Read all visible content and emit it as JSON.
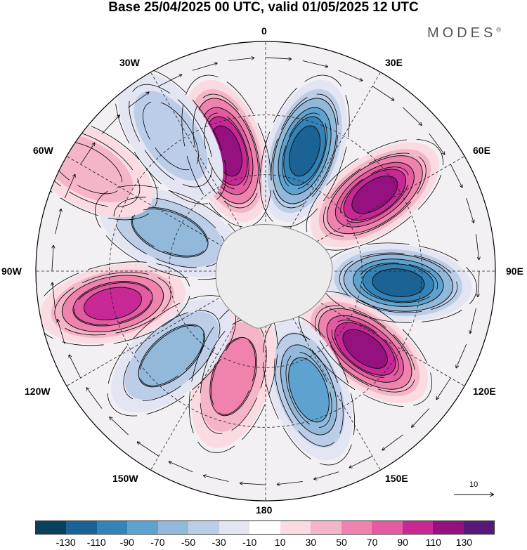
{
  "title": "Base 25/04/2025 00 UTC, valid 01/05/2025 12 UTC",
  "brand": {
    "name": "MODES",
    "mark": "®"
  },
  "longitude_labels": {
    "top": "0",
    "bottom": "180",
    "left": "90W",
    "right": "90E",
    "upper_left_1": "30W",
    "upper_left_2": "60W",
    "upper_right_1": "30E",
    "upper_right_2": "60E",
    "lower_left_1": "120W",
    "lower_left_2": "150W",
    "lower_right_1": "120E",
    "lower_right_2": "150E"
  },
  "reference_vector": {
    "label": "10"
  },
  "colorbar": {
    "colors": [
      "#0b3f5e",
      "#1a6394",
      "#3383b9",
      "#5ea2cf",
      "#92b8da",
      "#bccde7",
      "#e3e5f2",
      "#ffffff",
      "#fadbe2",
      "#f5b5c8",
      "#ef83ae",
      "#e35ba0",
      "#c72895",
      "#95117f",
      "#581878"
    ],
    "tick_labels": [
      "-130",
      "-110",
      "-90",
      "-70",
      "-50",
      "-30",
      "-10",
      "10",
      "30",
      "50",
      "70",
      "90",
      "110",
      "130"
    ]
  },
  "map": {
    "projection": "south polar stereographic",
    "field": "geopotential height anomaly with wind vectors",
    "anomaly_lobes": [
      {
        "name": "lobe-positive-0E",
        "angle_deg": -18,
        "radial": 0.55,
        "level": 6
      },
      {
        "name": "lobe-negative-20E",
        "angle_deg": 18,
        "radial": 0.55,
        "level": -6
      },
      {
        "name": "lobe-positive-60E",
        "angle_deg": 55,
        "radial": 0.58,
        "level": 6
      },
      {
        "name": "lobe-negative-95E",
        "angle_deg": 95,
        "radial": 0.58,
        "level": -6
      },
      {
        "name": "lobe-positive-125E",
        "angle_deg": 128,
        "radial": 0.55,
        "level": 6
      },
      {
        "name": "lobe-negative-155E",
        "angle_deg": 160,
        "radial": 0.55,
        "level": -4
      },
      {
        "name": "lobe-positive-170W",
        "angle_deg": 197,
        "radial": 0.48,
        "level": 3
      },
      {
        "name": "lobe-negative-140W",
        "angle_deg": 228,
        "radial": 0.55,
        "level": -3
      },
      {
        "name": "lobe-positive-100W",
        "angle_deg": 258,
        "radial": 0.68,
        "level": 5
      },
      {
        "name": "lobe-negative-70W",
        "angle_deg": 292,
        "radial": 0.45,
        "level": -3
      },
      {
        "name": "lobe-negative-30W",
        "angle_deg": 325,
        "radial": 0.72,
        "level": -2
      },
      {
        "name": "lobe-positive-50W",
        "angle_deg": 300,
        "radial": 0.9,
        "level": 2
      }
    ]
  }
}
